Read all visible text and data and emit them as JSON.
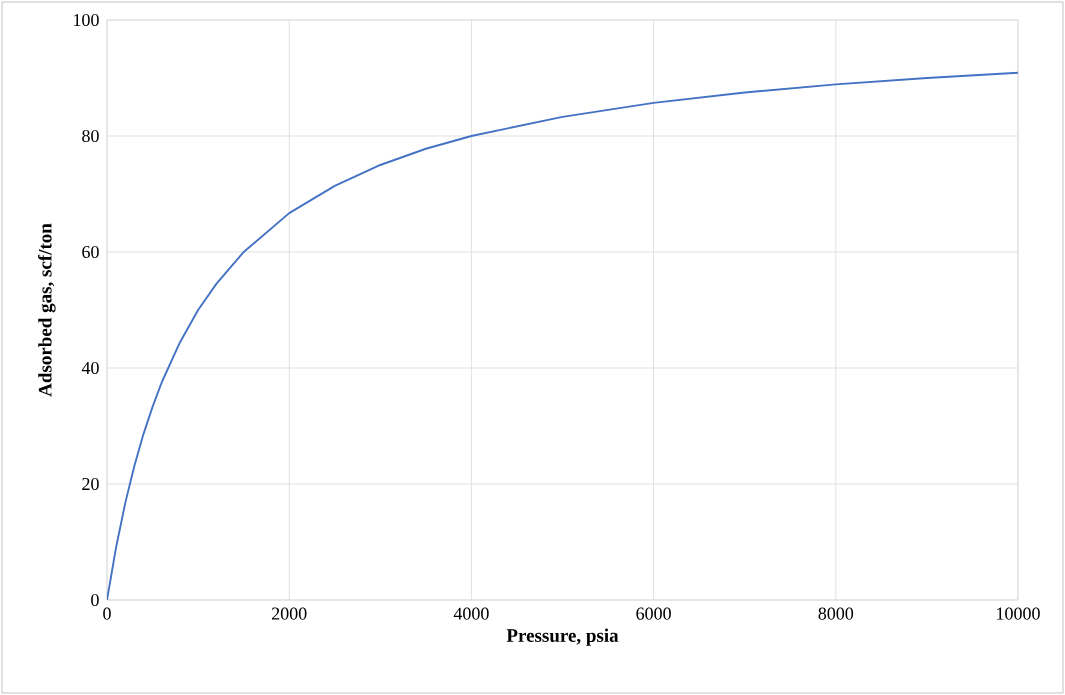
{
  "chart_data": {
    "type": "line",
    "xlabel": "Pressure,  psia",
    "ylabel": "Adsorbed gas,  scf/ton",
    "x": [
      0,
      100,
      200,
      300,
      400,
      500,
      600,
      800,
      1000,
      1200,
      1500,
      2000,
      2500,
      3000,
      3500,
      4000,
      5000,
      6000,
      7000,
      8000,
      9000,
      10000
    ],
    "series": [
      {
        "color": "#4472c4",
        "values": [
          0,
          9.1,
          16.7,
          23.1,
          28.6,
          33.3,
          37.5,
          44.4,
          50,
          54.5,
          60,
          66.7,
          71.4,
          75,
          77.8,
          80,
          83.3,
          85.7,
          87.5,
          88.9,
          90,
          90.9
        ]
      }
    ],
    "xlim": [
      0,
      10000
    ],
    "ylim": [
      0,
      100
    ],
    "xticks": [
      0,
      2000,
      4000,
      6000,
      8000,
      10000
    ],
    "yticks": [
      0,
      20,
      40,
      60,
      80,
      100
    ],
    "grid": true,
    "marker": "none",
    "line_style": "solid"
  }
}
